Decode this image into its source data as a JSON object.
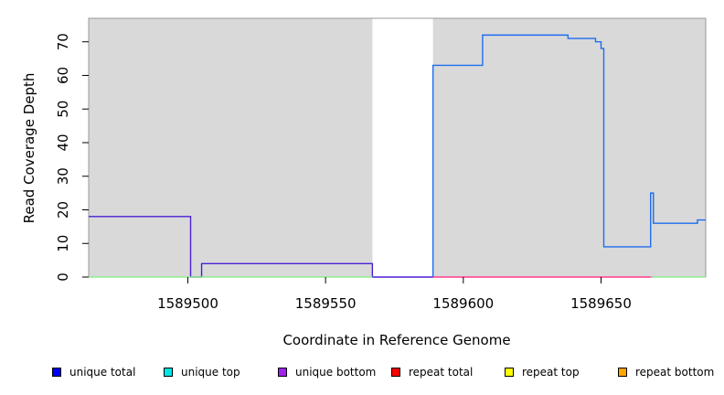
{
  "chart_data": {
    "type": "line",
    "xlabel": "Coordinate in Reference Genome",
    "ylabel": "Read Coverage Depth",
    "xlim": [
      1589464,
      1589688
    ],
    "ylim": [
      0,
      77
    ],
    "xticks": [
      1589500,
      1589550,
      1589600,
      1589650
    ],
    "yticks": [
      0,
      10,
      20,
      30,
      40,
      50,
      60,
      70
    ],
    "shaded_regions": [
      [
        1589464,
        1589567
      ],
      [
        1589589,
        1589688
      ]
    ],
    "legend": [
      {
        "label": "unique total",
        "color": "#0000ff"
      },
      {
        "label": "unique top",
        "color": "#00e5e5"
      },
      {
        "label": "unique bottom",
        "color": "#a020f0"
      },
      {
        "label": "repeat total",
        "color": "#ff0000"
      },
      {
        "label": "repeat top",
        "color": "#ffff00"
      },
      {
        "label": "repeat bottom",
        "color": "#ffa500"
      }
    ],
    "series": [
      {
        "color": "#1e6cf0",
        "points": [
          [
            1589589,
            0
          ],
          [
            1589589,
            63
          ],
          [
            1589607,
            63
          ],
          [
            1589607,
            72
          ],
          [
            1589638,
            72
          ],
          [
            1589638,
            71
          ],
          [
            1589648,
            71
          ],
          [
            1589648,
            70
          ],
          [
            1589650,
            70
          ],
          [
            1589650,
            68
          ],
          [
            1589651,
            68
          ],
          [
            1589651,
            9
          ],
          [
            1589668,
            9
          ],
          [
            1589668,
            25
          ],
          [
            1589669,
            25
          ],
          [
            1589669,
            16
          ],
          [
            1589685,
            16
          ],
          [
            1589685,
            17
          ],
          [
            1589688,
            17
          ]
        ]
      },
      {
        "color": "#4b1fd6",
        "points": [
          [
            1589464,
            18
          ],
          [
            1589501,
            18
          ],
          [
            1589501,
            0
          ],
          [
            1589505,
            0
          ],
          [
            1589505,
            4
          ],
          [
            1589567,
            4
          ],
          [
            1589567,
            0
          ],
          [
            1589589,
            0
          ]
        ]
      },
      {
        "color": "#ff3c8c",
        "points": [
          [
            1589589,
            0
          ],
          [
            1589668,
            0
          ]
        ]
      },
      {
        "color": "#90ee90",
        "points": [
          [
            1589464,
            0
          ],
          [
            1589567,
            0
          ]
        ]
      },
      {
        "color": "#90ee90",
        "points": [
          [
            1589669,
            0
          ],
          [
            1589688,
            0
          ]
        ]
      }
    ]
  }
}
